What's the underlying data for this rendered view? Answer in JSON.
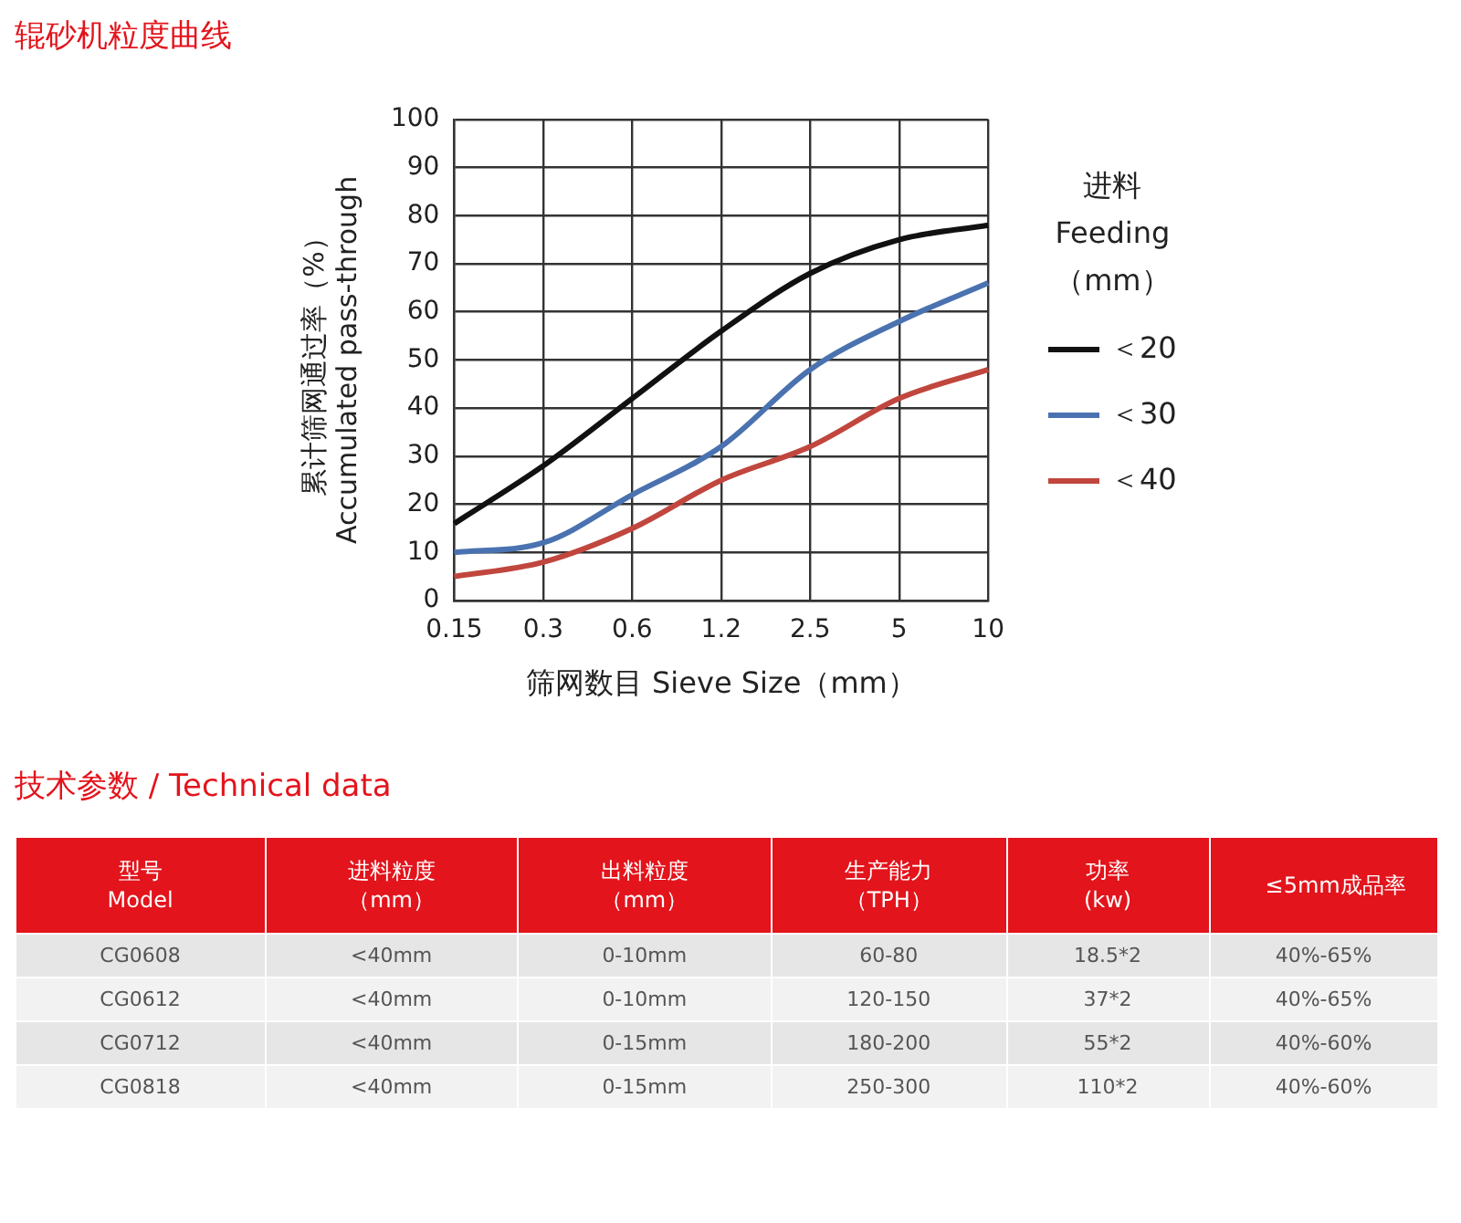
{
  "chart_data": [
    {
      "type": "line",
      "title": "辊砂机粒度曲线",
      "xlabel": "筛网数目 Sieve Size（mm）",
      "ylabel": "累计筛网通过率（%）\nAccumulated pass-through",
      "legend_title": "进料\nFeeding\n（mm）",
      "categories": [
        "0.15",
        "0.3",
        "0.6",
        "1.2",
        "2.5",
        "5",
        "10"
      ],
      "series": [
        {
          "name": "＜20",
          "color": "#111111",
          "values": [
            16,
            28,
            42,
            56,
            68,
            75,
            78
          ]
        },
        {
          "name": "＜30",
          "color": "#4a72b0",
          "values": [
            10,
            12,
            22,
            32,
            48,
            58,
            66
          ]
        },
        {
          "name": "＜40",
          "color": "#c0463e",
          "values": [
            5,
            8,
            15,
            25,
            32,
            42,
            48
          ]
        }
      ],
      "ylim": [
        0,
        100
      ],
      "yticks": [
        0,
        10,
        20,
        30,
        40,
        50,
        60,
        70,
        80,
        90,
        100
      ],
      "grid": true,
      "legend": "right",
      "marker": "none",
      "line_style": "solid"
    },
    {
      "type": "other",
      "title": "技术参数 / Technical data",
      "categories": [
        "型号\nModel",
        "进料粒度（mm）",
        "出料粒度（mm）",
        "生产能力（TPH）",
        "功率\n(kw)",
        "≤5mm成品率"
      ],
      "annotations": [
        "CG0608",
        "<40mm",
        "0-10mm",
        "60-80",
        "18.5*2",
        "40%-65%",
        "CG0612",
        "<40mm",
        "0-10mm",
        "120-150",
        "37*2",
        "40%-65%",
        "CG0712",
        "<40mm",
        "0-15mm",
        "180-200",
        "55*2",
        "40%-60%",
        "CG0818",
        "<40mm",
        "0-15mm",
        "250-300",
        "110*2",
        "40%-60%"
      ]
    }
  ]
}
